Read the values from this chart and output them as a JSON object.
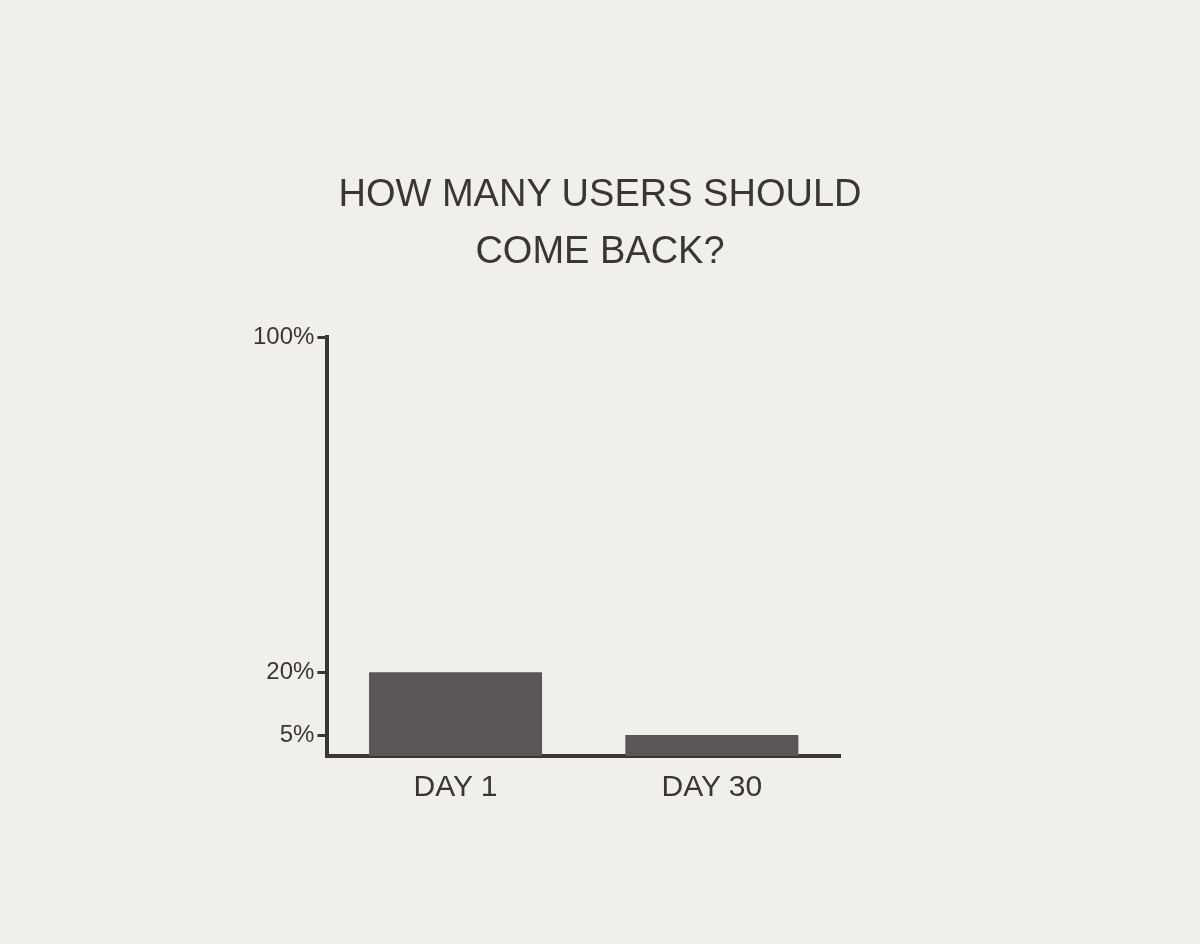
{
  "chart_data": {
    "type": "bar",
    "title": "HOW MANY USERS SHOULD COME BACK?",
    "categories": [
      "DAY 1",
      "DAY 30"
    ],
    "values": [
      20,
      5
    ],
    "color": "#5b5656",
    "ylim": [
      0,
      100
    ],
    "yticks": [
      {
        "value": 5,
        "label": "5%"
      },
      {
        "value": 20,
        "label": "20%"
      },
      {
        "value": 100,
        "label": "100%"
      }
    ],
    "grid": false,
    "legend": false
  }
}
